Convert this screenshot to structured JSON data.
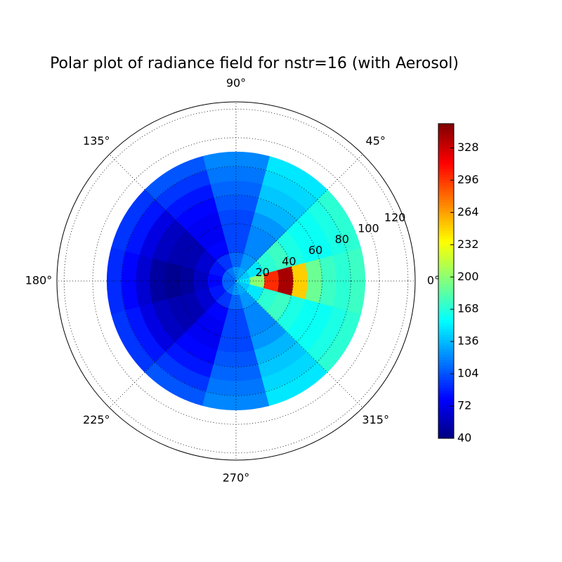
{
  "chart_data": {
    "type": "polar_contour",
    "title": "Polar plot of radiance field for nstr=16 (with Aerosol)",
    "azimuth": [
      0,
      30,
      60,
      90,
      120,
      150,
      180,
      210,
      240,
      270,
      300,
      330
    ],
    "zenith_bins": [
      0,
      10,
      20,
      30,
      40,
      50,
      60,
      70,
      80,
      90
    ],
    "values": [
      [
        150,
        140,
        130,
        125,
        115,
        110,
        108,
        110,
        115,
        125,
        130,
        140
      ],
      [
        200,
        150,
        125,
        110,
        95,
        85,
        80,
        85,
        95,
        110,
        125,
        150
      ],
      [
        300,
        170,
        120,
        100,
        80,
        65,
        60,
        65,
        80,
        100,
        120,
        170
      ],
      [
        340,
        175,
        120,
        100,
        75,
        55,
        48,
        55,
        75,
        100,
        120,
        175
      ],
      [
        250,
        165,
        125,
        100,
        75,
        55,
        45,
        55,
        75,
        100,
        125,
        165
      ],
      [
        190,
        160,
        135,
        105,
        80,
        60,
        50,
        60,
        80,
        105,
        135,
        160
      ],
      [
        175,
        160,
        140,
        110,
        85,
        70,
        65,
        70,
        85,
        110,
        140,
        160
      ],
      [
        170,
        165,
        145,
        115,
        95,
        85,
        80,
        85,
        95,
        115,
        145,
        165
      ],
      [
        175,
        170,
        150,
        120,
        105,
        95,
        92,
        95,
        105,
        120,
        150,
        170
      ]
    ],
    "rlim": [
      0,
      125
    ],
    "rticks": [
      20,
      40,
      60,
      80,
      100,
      120
    ],
    "angle_ticks": [
      {
        "value": 0,
        "label": "0°"
      },
      {
        "value": 45,
        "label": "45°"
      },
      {
        "value": 90,
        "label": "90°"
      },
      {
        "value": 135,
        "label": "135°"
      },
      {
        "value": 180,
        "label": "180°"
      },
      {
        "value": 225,
        "label": "225°"
      },
      {
        "value": 270,
        "label": "270°"
      },
      {
        "value": 315,
        "label": "315°"
      }
    ],
    "clim": [
      40,
      352
    ],
    "cticks": [
      40,
      72,
      104,
      136,
      168,
      200,
      232,
      264,
      296,
      328
    ],
    "colormap": "jet",
    "grid": true
  }
}
